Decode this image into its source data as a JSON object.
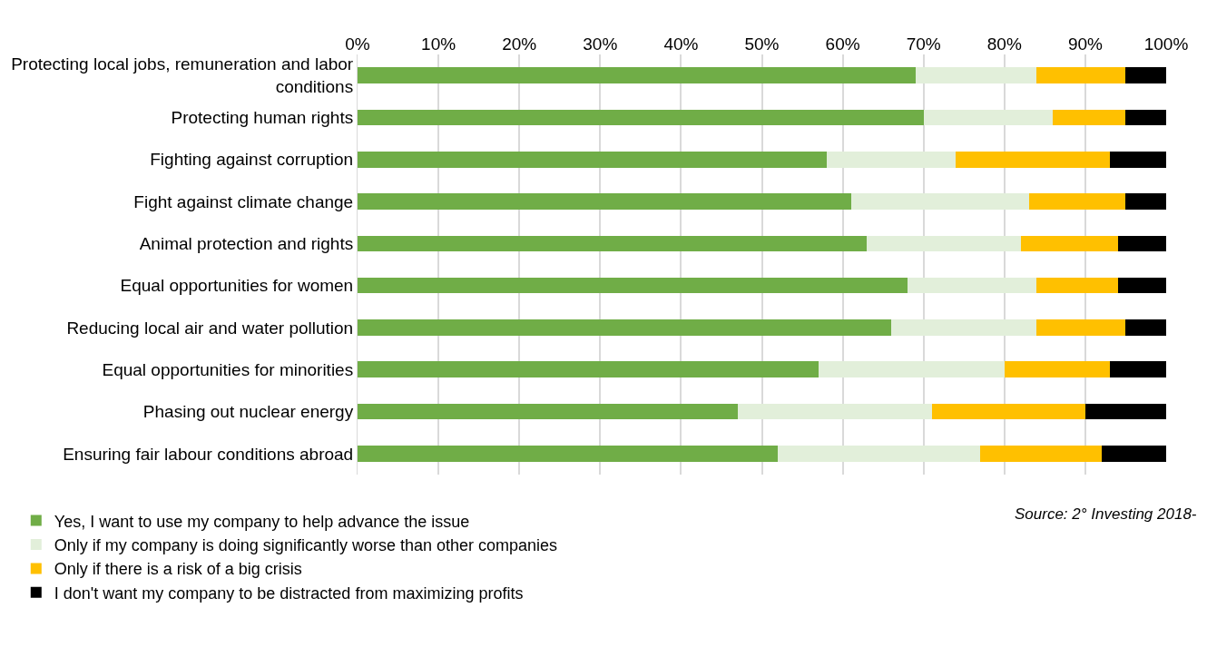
{
  "chart_data": {
    "type": "bar",
    "orientation": "horizontal",
    "stacked": true,
    "categories": [
      "Protecting local jobs, remuneration and labor conditions",
      "Protecting human rights",
      "Fighting against corruption",
      "Fight against climate change",
      "Animal protection and rights",
      "Equal opportunities for women",
      "Reducing local air and water pollution",
      "Equal opportunities for minorities",
      "Phasing out nuclear energy",
      "Ensuring fair labour conditions abroad"
    ],
    "series": [
      {
        "name": "Yes, I want to use my company to help advance the issue",
        "color": "#70ad47",
        "values": [
          69,
          70,
          58,
          61,
          63,
          68,
          66,
          57,
          47,
          52
        ]
      },
      {
        "name": "Only if my company is doing significantly worse than other companies",
        "color": "#e2efda",
        "values": [
          15,
          16,
          16,
          22,
          19,
          16,
          18,
          23,
          24,
          25
        ]
      },
      {
        "name": "Only if there is a risk of a big crisis",
        "color": "#ffc000",
        "values": [
          11,
          9,
          19,
          12,
          12,
          10,
          11,
          13,
          19,
          15
        ]
      },
      {
        "name": "I don't want my company to be distracted from maximizing profits",
        "color": "#000000",
        "values": [
          5,
          5,
          7,
          5,
          6,
          6,
          5,
          7,
          10,
          8
        ]
      }
    ],
    "xlim": [
      0,
      100
    ],
    "xticks": [
      {
        "value": 0,
        "label": "0%"
      },
      {
        "value": 10,
        "label": "10%"
      },
      {
        "value": 20,
        "label": "20%"
      },
      {
        "value": 30,
        "label": "30%"
      },
      {
        "value": 40,
        "label": "40%"
      },
      {
        "value": 50,
        "label": "50%"
      },
      {
        "value": 60,
        "label": "60%"
      },
      {
        "value": 70,
        "label": "70%"
      },
      {
        "value": 80,
        "label": "80%"
      },
      {
        "value": 90,
        "label": "90%"
      },
      {
        "value": 100,
        "label": "100%"
      }
    ],
    "grid": "x",
    "legend": "bottom",
    "annotations": [
      "Source: 2° Investing 2018-"
    ]
  }
}
